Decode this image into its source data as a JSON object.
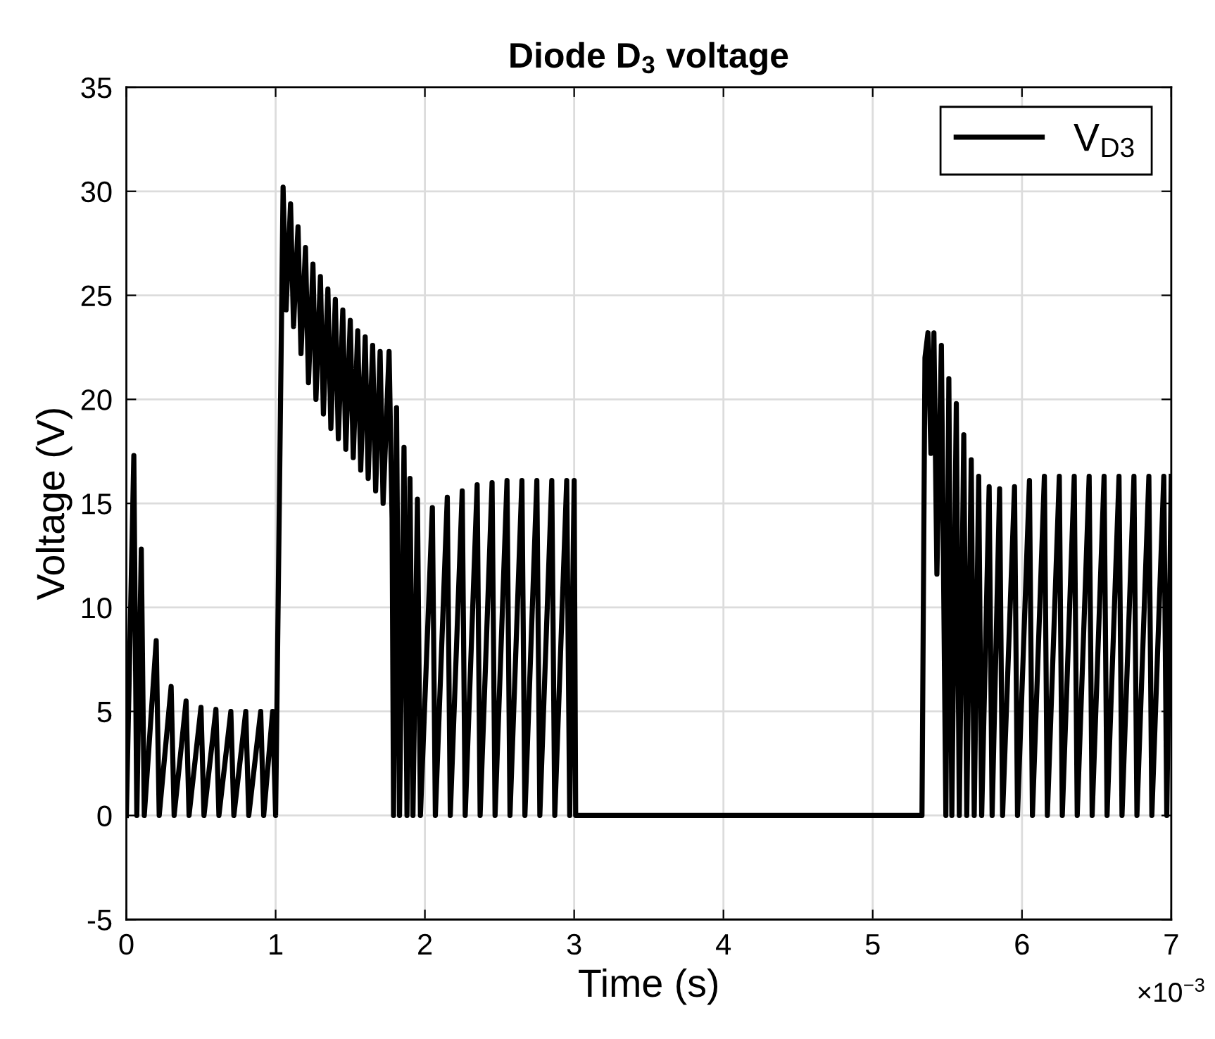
{
  "chart_data": {
    "type": "line",
    "title": "Diode D$_{3}$ voltage",
    "xlabel": "Time (s)",
    "ylabel": "Voltage (V)",
    "annotations": [
      "×10$^{−3}$"
    ],
    "series": [
      {
        "name": "V$_{D3}$",
        "color": "#000000",
        "x": [
          0,
          0.05,
          0.07,
          0.1,
          0.12,
          0.2,
          0.22,
          0.3,
          0.32,
          0.4,
          0.42,
          0.5,
          0.52,
          0.6,
          0.62,
          0.7,
          0.72,
          0.8,
          0.82,
          0.9,
          0.92,
          0.98,
          1.0,
          1.05,
          1.07,
          1.1,
          1.12,
          1.15,
          1.17,
          1.2,
          1.22,
          1.25,
          1.27,
          1.3,
          1.32,
          1.35,
          1.37,
          1.4,
          1.42,
          1.45,
          1.47,
          1.5,
          1.52,
          1.55,
          1.57,
          1.6,
          1.62,
          1.65,
          1.67,
          1.7,
          1.72,
          1.76,
          1.78,
          1.79,
          1.81,
          1.83,
          1.86,
          1.88,
          1.9,
          1.92,
          1.95,
          1.97,
          2.05,
          2.07,
          2.15,
          2.17,
          2.25,
          2.27,
          2.35,
          2.37,
          2.45,
          2.47,
          2.55,
          2.57,
          2.65,
          2.67,
          2.75,
          2.77,
          2.85,
          2.87,
          2.95,
          2.97,
          3.0,
          3.01,
          5.33,
          5.35,
          5.37,
          5.39,
          5.41,
          5.43,
          5.46,
          5.49,
          5.51,
          5.53,
          5.56,
          5.58,
          5.61,
          5.63,
          5.66,
          5.68,
          5.71,
          5.73,
          5.78,
          5.8,
          5.85,
          5.87,
          5.95,
          5.97,
          6.05,
          6.07,
          6.15,
          6.17,
          6.25,
          6.27,
          6.35,
          6.37,
          6.45,
          6.47,
          6.55,
          6.57,
          6.65,
          6.67,
          6.75,
          6.77,
          6.85,
          6.87,
          6.95,
          6.97,
          7.0
        ],
        "values": [
          0,
          17.3,
          0,
          12.8,
          0,
          8.4,
          0,
          6.2,
          0,
          5.5,
          0,
          5.2,
          0,
          5.1,
          0,
          5.0,
          0,
          5.0,
          0,
          5.0,
          0,
          5.0,
          0,
          30.2,
          24.3,
          29.4,
          23.5,
          28.3,
          22.2,
          27.3,
          20.8,
          26.5,
          20.0,
          25.9,
          19.3,
          25.3,
          18.6,
          24.8,
          18.1,
          24.3,
          17.6,
          23.8,
          17.2,
          23.3,
          16.6,
          23.0,
          16.2,
          22.6,
          15.6,
          22.3,
          15.0,
          22.3,
          14.3,
          0,
          19.6,
          0,
          17.7,
          0,
          16.2,
          0,
          15.2,
          0,
          14.8,
          0,
          15.3,
          0,
          15.6,
          0,
          15.9,
          0,
          16.0,
          0,
          16.1,
          0,
          16.1,
          0,
          16.1,
          0,
          16.1,
          0,
          16.1,
          0,
          16.1,
          0,
          0,
          22.0,
          23.2,
          17.4,
          23.2,
          11.6,
          22.6,
          0,
          21.0,
          0,
          19.8,
          0,
          18.3,
          0,
          17.1,
          0,
          16.3,
          0,
          15.8,
          0,
          15.7,
          0,
          15.8,
          0,
          16.1,
          0,
          16.3,
          0,
          16.3,
          0,
          16.3,
          0,
          16.3,
          0,
          16.3,
          0,
          16.3,
          0,
          16.3,
          0,
          16.3,
          0,
          16.3,
          0,
          16.3
        ]
      }
    ],
    "xlim": [
      0,
      7
    ],
    "xticks": [
      0,
      1,
      2,
      3,
      4,
      5,
      6,
      7
    ],
    "ylim": [
      -5,
      35
    ],
    "yticks": [
      -5,
      0,
      5,
      10,
      15,
      20,
      25,
      30,
      35
    ],
    "grid": true,
    "legend": "top right",
    "line_style": "solid",
    "marker": "none"
  }
}
